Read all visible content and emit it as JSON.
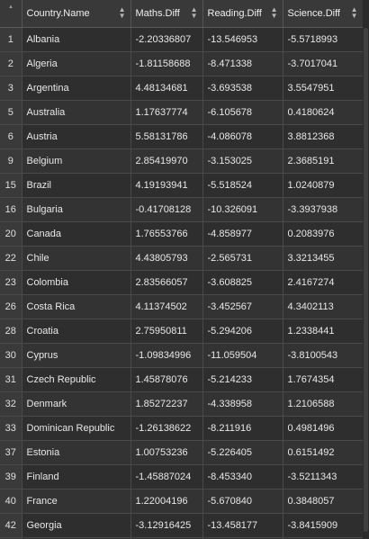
{
  "table": {
    "columns": [
      "Country.Name",
      "Maths.Diff",
      "Reading.Diff",
      "Science.Diff"
    ],
    "rows": [
      {
        "idx": "1",
        "country": "Albania",
        "maths": "-2.20336807",
        "reading": "-13.546953",
        "science": "-5.5718993"
      },
      {
        "idx": "2",
        "country": "Algeria",
        "maths": "-1.81158688",
        "reading": "-8.471338",
        "science": "-3.7017041"
      },
      {
        "idx": "3",
        "country": "Argentina",
        "maths": "4.48134681",
        "reading": "-3.693538",
        "science": "3.5547951"
      },
      {
        "idx": "5",
        "country": "Australia",
        "maths": "1.17637774",
        "reading": "-6.105678",
        "science": "0.4180624"
      },
      {
        "idx": "6",
        "country": "Austria",
        "maths": "5.58131786",
        "reading": "-4.086078",
        "science": "3.8812368"
      },
      {
        "idx": "9",
        "country": "Belgium",
        "maths": "2.85419970",
        "reading": "-3.153025",
        "science": "2.3685191"
      },
      {
        "idx": "15",
        "country": "Brazil",
        "maths": "4.19193941",
        "reading": "-5.518524",
        "science": "1.0240879"
      },
      {
        "idx": "16",
        "country": "Bulgaria",
        "maths": "-0.41708128",
        "reading": "-10.326091",
        "science": "-3.3937938"
      },
      {
        "idx": "20",
        "country": "Canada",
        "maths": "1.76553766",
        "reading": "-4.858977",
        "science": "0.2083976"
      },
      {
        "idx": "22",
        "country": "Chile",
        "maths": "4.43805793",
        "reading": "-2.565731",
        "science": "3.3213455"
      },
      {
        "idx": "23",
        "country": "Colombia",
        "maths": "2.83566057",
        "reading": "-3.608825",
        "science": "2.4167274"
      },
      {
        "idx": "26",
        "country": "Costa Rica",
        "maths": "4.11374502",
        "reading": "-3.452567",
        "science": "4.3402113"
      },
      {
        "idx": "28",
        "country": "Croatia",
        "maths": "2.75950811",
        "reading": "-5.294206",
        "science": "1.2338441"
      },
      {
        "idx": "30",
        "country": "Cyprus",
        "maths": "-1.09834996",
        "reading": "-11.059504",
        "science": "-3.8100543"
      },
      {
        "idx": "31",
        "country": "Czech Republic",
        "maths": "1.45878076",
        "reading": "-5.214233",
        "science": "1.7674354"
      },
      {
        "idx": "32",
        "country": "Denmark",
        "maths": "1.85272237",
        "reading": "-4.338958",
        "science": "1.2106588"
      },
      {
        "idx": "33",
        "country": "Dominican Republic",
        "maths": "-1.26138622",
        "reading": "-8.211916",
        "science": "0.4981496"
      },
      {
        "idx": "37",
        "country": "Estonia",
        "maths": "1.00753236",
        "reading": "-5.226405",
        "science": "0.6151492"
      },
      {
        "idx": "39",
        "country": "Finland",
        "maths": "-1.45887024",
        "reading": "-8.453340",
        "science": "-3.5211343"
      },
      {
        "idx": "40",
        "country": "France",
        "maths": "1.22004196",
        "reading": "-5.670840",
        "science": "0.3848057"
      },
      {
        "idx": "42",
        "country": "Georgia",
        "maths": "-3.12916425",
        "reading": "-13.458177",
        "science": "-3.8415909"
      },
      {
        "idx": "",
        "country": "",
        "maths": "",
        "reading": "",
        "science": ""
      }
    ]
  }
}
